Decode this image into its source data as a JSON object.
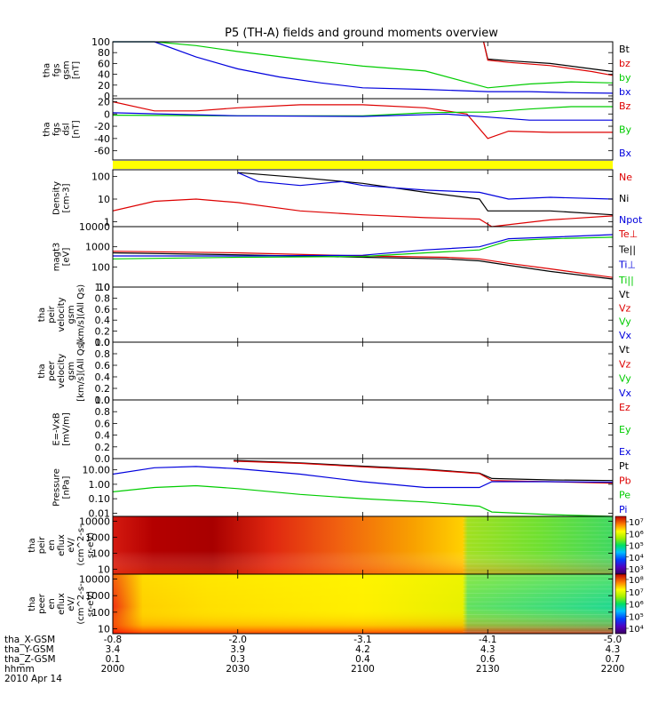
{
  "title": "P5 (TH-A) fields and ground moments overview",
  "colors": {
    "black": "#000000",
    "red": "#dd0000",
    "green": "#00cc00",
    "blue": "#0000dd",
    "yellow": "#ffff00"
  },
  "chart_data": {
    "type": "line",
    "time_range": [
      "2000",
      "2200"
    ],
    "date": "2010 Apr 14",
    "x_ticks": [
      "2000",
      "2030",
      "2100",
      "2130",
      "2200"
    ],
    "ephemeris": [
      {
        "label": "tha_X-GSM",
        "values": [
          "-0.8",
          "-2.0",
          "-3.1",
          "-4.1",
          "-5.0"
        ]
      },
      {
        "label": "tha_Y-GSM",
        "values": [
          "3.4",
          "3.9",
          "4.2",
          "4.3",
          "4.3"
        ]
      },
      {
        "label": "tha_Z-GSM",
        "values": [
          "0.1",
          "0.3",
          "0.4",
          "0.6",
          "0.7"
        ]
      },
      {
        "label": "hhmm",
        "values": [
          "2000",
          "2030",
          "2100",
          "2130",
          "2200"
        ]
      }
    ],
    "panels": [
      {
        "id": "fgs_gsm",
        "ylabel": [
          "tha",
          "fgs",
          "gsm",
          "[nT]"
        ],
        "yscale": "linear",
        "ylim": [
          -5,
          100
        ],
        "ticks": [
          "100",
          "80",
          "60",
          "40",
          "20",
          "0"
        ],
        "legend": [
          {
            "name": "Bt",
            "color": "#000000"
          },
          {
            "name": "bz",
            "color": "#dd0000"
          },
          {
            "name": "by",
            "color": "#00cc00"
          },
          {
            "name": "bx",
            "color": "#0000dd"
          }
        ],
        "series": [
          {
            "name": "Bt",
            "color": "#000000",
            "x": [
              2129,
              2130,
              2135,
              2145,
              2155,
              2200
            ],
            "y": [
              100,
              68,
              65,
              60,
              50,
              45
            ]
          },
          {
            "name": "bz",
            "color": "#dd0000",
            "x": [
              2129,
              2130,
              2135,
              2145,
              2155,
              2200
            ],
            "y": [
              100,
              66,
              62,
              56,
              45,
              38
            ]
          },
          {
            "name": "by",
            "color": "#00cc00",
            "x": [
              2000,
              2010,
              2020,
              2030,
              2045,
              2100,
              2115,
              2130,
              2140,
              2150,
              2200
            ],
            "y": [
              100,
              100,
              93,
              82,
              68,
              55,
              46,
              15,
              22,
              26,
              24
            ]
          },
          {
            "name": "bx",
            "color": "#0000dd",
            "x": [
              2000,
              2010,
              2020,
              2030,
              2040,
              2050,
              2100,
              2115,
              2130,
              2140,
              2150,
              2200
            ],
            "y": [
              100,
              100,
              72,
              50,
              35,
              24,
              15,
              12,
              8,
              8,
              6,
              5
            ]
          }
        ]
      },
      {
        "id": "fgs_dsl",
        "ylabel": [
          "tha",
          "fgs",
          "dsl",
          "[nT]"
        ],
        "yscale": "linear",
        "ylim": [
          -75,
          25
        ],
        "ticks": [
          "20",
          "0",
          "-20",
          "-40",
          "-60"
        ],
        "legend": [
          {
            "name": "Bz",
            "color": "#dd0000"
          },
          {
            "name": "By",
            "color": "#00cc00"
          },
          {
            "name": "Bx",
            "color": "#0000dd"
          }
        ],
        "series": [
          {
            "name": "Bz",
            "color": "#dd0000",
            "x": [
              2000,
              2010,
              2020,
              2030,
              2045,
              2100,
              2115,
              2125,
              2130,
              2135,
              2145,
              2200
            ],
            "y": [
              20,
              5,
              5,
              10,
              15,
              15,
              10,
              0,
              -40,
              -28,
              -30,
              -30
            ]
          },
          {
            "name": "By",
            "color": "#00cc00",
            "x": [
              2000,
              2030,
              2100,
              2115,
              2125,
              2130,
              2140,
              2150,
              2200
            ],
            "y": [
              -2,
              -3,
              -3,
              2,
              3,
              3,
              8,
              12,
              12
            ]
          },
          {
            "name": "Bx",
            "color": "#0000dd",
            "x": [
              2000,
              2030,
              2100,
              2120,
              2130,
              2140,
              2150,
              2200
            ],
            "y": [
              2,
              -3,
              -4,
              0,
              -5,
              -10,
              -10,
              -10
            ]
          }
        ]
      },
      {
        "id": "density",
        "ylabel": [
          "Density",
          "[cm-3]"
        ],
        "yscale": "log",
        "ylim": [
          0.6,
          200
        ],
        "ticks": [
          "100",
          "10",
          "1"
        ],
        "legend": [
          {
            "name": "Ne",
            "color": "#dd0000"
          },
          {
            "name": "Ni",
            "color": "#000000"
          },
          {
            "name": "Npot",
            "color": "#0000dd"
          }
        ],
        "series": [
          {
            "name": "Ne",
            "color": "#dd0000",
            "x": [
              2000,
              2010,
              2020,
              2030,
              2045,
              2100,
              2115,
              2128,
              2131,
              2145,
              2200
            ],
            "y": [
              3,
              8,
              10,
              7,
              3,
              2,
              1.5,
              1.3,
              0.6,
              1.2,
              1.8
            ]
          },
          {
            "name": "Ni",
            "color": "#000000",
            "x": [
              2030,
              2045,
              2100,
              2115,
              2128,
              2130,
              2145,
              2200
            ],
            "y": [
              150,
              90,
              50,
              20,
              10,
              3,
              3,
              2
            ]
          },
          {
            "name": "Npot",
            "color": "#0000dd",
            "x": [
              2030,
              2035,
              2045,
              2055,
              2100,
              2115,
              2128,
              2135,
              2145,
              2200
            ],
            "y": [
              150,
              60,
              40,
              60,
              40,
              25,
              20,
              10,
              12,
              10
            ]
          }
        ]
      },
      {
        "id": "temperature",
        "ylabel": [
          "magt3",
          "[eV]"
        ],
        "yscale": "log",
        "ylim": [
          10,
          10000
        ],
        "ticks": [
          "10000",
          "1000",
          "100",
          "10"
        ],
        "legend": [
          {
            "name": "Te⊥",
            "color": "#dd0000"
          },
          {
            "name": "Te||",
            "color": "#000000"
          },
          {
            "name": "Ti⊥",
            "color": "#0000dd"
          },
          {
            "name": "Ti||",
            "color": "#00cc00"
          }
        ],
        "series": [
          {
            "name": "Te⊥",
            "color": "#dd0000",
            "x": [
              2000,
              2030,
              2100,
              2120,
              2128,
              2135,
              2145,
              2200
            ],
            "y": [
              600,
              500,
              350,
              300,
              250,
              150,
              80,
              30
            ]
          },
          {
            "name": "Te||",
            "color": "#000000",
            "x": [
              2000,
              2030,
              2100,
              2120,
              2128,
              2135,
              2145,
              2200
            ],
            "y": [
              500,
              400,
              300,
              250,
              200,
              120,
              60,
              25
            ]
          },
          {
            "name": "Ti⊥",
            "color": "#0000dd",
            "x": [
              2000,
              2030,
              2100,
              2115,
              2128,
              2135,
              2145,
              2200
            ],
            "y": [
              350,
              350,
              380,
              700,
              1000,
              2500,
              3000,
              4000
            ]
          },
          {
            "name": "Ti||",
            "color": "#00cc00",
            "x": [
              2000,
              2030,
              2100,
              2115,
              2128,
              2135,
              2145,
              2200
            ],
            "y": [
              250,
              300,
              330,
              500,
              700,
              2000,
              2500,
              3000
            ]
          }
        ]
      },
      {
        "id": "peir_velocity",
        "ylabel": [
          "tha",
          "peir",
          "velocity",
          "gsm",
          "[km/s](All Qs)"
        ],
        "yscale": "linear",
        "ylim": [
          0,
          1
        ],
        "ticks": [
          "1.0",
          "0.8",
          "0.6",
          "0.4",
          "0.2",
          "0.0"
        ],
        "legend": [
          {
            "name": "Vt",
            "color": "#000000"
          },
          {
            "name": "Vz",
            "color": "#dd0000"
          },
          {
            "name": "Vy",
            "color": "#00cc00"
          },
          {
            "name": "Vx",
            "color": "#0000dd"
          }
        ],
        "series": []
      },
      {
        "id": "peer_velocity",
        "ylabel": [
          "tha",
          "peer",
          "velocity",
          "gsm",
          "[km/s](All Qs)"
        ],
        "yscale": "linear",
        "ylim": [
          0,
          1
        ],
        "ticks": [
          "1.0",
          "0.8",
          "0.6",
          "0.4",
          "0.2",
          "0.0"
        ],
        "legend": [
          {
            "name": "Vt",
            "color": "#000000"
          },
          {
            "name": "Vz",
            "color": "#dd0000"
          },
          {
            "name": "Vy",
            "color": "#00cc00"
          },
          {
            "name": "Vx",
            "color": "#0000dd"
          }
        ],
        "series": []
      },
      {
        "id": "efield",
        "ylabel": [
          "E=-VxB",
          "[mV/m]"
        ],
        "yscale": "linear",
        "ylim": [
          0,
          1
        ],
        "ticks": [
          "1.0",
          "0.8",
          "0.6",
          "0.4",
          "0.2",
          "0.0"
        ],
        "legend": [
          {
            "name": "Ez",
            "color": "#dd0000"
          },
          {
            "name": "Ey",
            "color": "#00cc00"
          },
          {
            "name": "Ex",
            "color": "#0000dd"
          }
        ],
        "series": []
      },
      {
        "id": "pressure",
        "ylabel": [
          "Pressure",
          "[nPa]"
        ],
        "yscale": "log",
        "ylim": [
          0.006,
          60
        ],
        "ticks": [
          "10.00",
          "1.00",
          "0.10",
          "0.01"
        ],
        "legend": [
          {
            "name": "Pt",
            "color": "#000000"
          },
          {
            "name": "Pb",
            "color": "#dd0000"
          },
          {
            "name": "Pe",
            "color": "#00cc00"
          },
          {
            "name": "Pi",
            "color": "#0000dd"
          }
        ],
        "series": [
          {
            "name": "Pt",
            "color": "#000000",
            "x": [
              2029,
              2045,
              2100,
              2115,
              2128,
              2131,
              2145,
              2200
            ],
            "y": [
              45,
              30,
              18,
              11,
              6,
              2.5,
              2,
              1.8
            ]
          },
          {
            "name": "Pb",
            "color": "#dd0000",
            "x": [
              2029,
              2045,
              2100,
              2115,
              2128,
              2131,
              2145,
              2200
            ],
            "y": [
              40,
              28,
              16,
              10,
              5.5,
              1.8,
              1.5,
              1.2
            ]
          },
          {
            "name": "Pe",
            "color": "#00cc00",
            "x": [
              2000,
              2010,
              2020,
              2030,
              2045,
              2100,
              2115,
              2128,
              2131,
              2145,
              2200
            ],
            "y": [
              0.3,
              0.6,
              0.8,
              0.5,
              0.2,
              0.1,
              0.06,
              0.03,
              0.012,
              0.008,
              0.006
            ]
          },
          {
            "name": "Pi",
            "color": "#0000dd",
            "x": [
              2000,
              2010,
              2020,
              2030,
              2045,
              2100,
              2115,
              2128,
              2131,
              2145,
              2200
            ],
            "y": [
              5,
              14,
              17,
              12,
              5,
              1.5,
              0.6,
              0.6,
              1.5,
              1.5,
              1.4
            ]
          }
        ]
      },
      {
        "id": "peir_eflux",
        "ylabel": [
          "tha",
          "peir",
          "en",
          "eflux",
          "eV/",
          "(cm^2-s-",
          "sr-eV)"
        ],
        "type": "heatmap",
        "yscale": "log",
        "ylim": [
          5,
          20000
        ],
        "ticks": [
          "10000",
          "1000",
          "100",
          "10"
        ],
        "colorbar_ticks": [
          "10⁷",
          "10⁶",
          "10⁵",
          "10⁴",
          "10³"
        ]
      },
      {
        "id": "peer_eflux",
        "ylabel": [
          "tha",
          "peer",
          "en",
          "eflux",
          "eV/",
          "(cm^2-s-",
          "sr-eV)"
        ],
        "type": "heatmap",
        "yscale": "log",
        "ylim": [
          5,
          20000
        ],
        "ticks": [
          "10000",
          "1000",
          "100",
          "10"
        ],
        "colorbar_ticks": [
          "10⁸",
          "10⁷",
          "10⁶",
          "10⁵",
          "10⁴"
        ]
      }
    ]
  }
}
